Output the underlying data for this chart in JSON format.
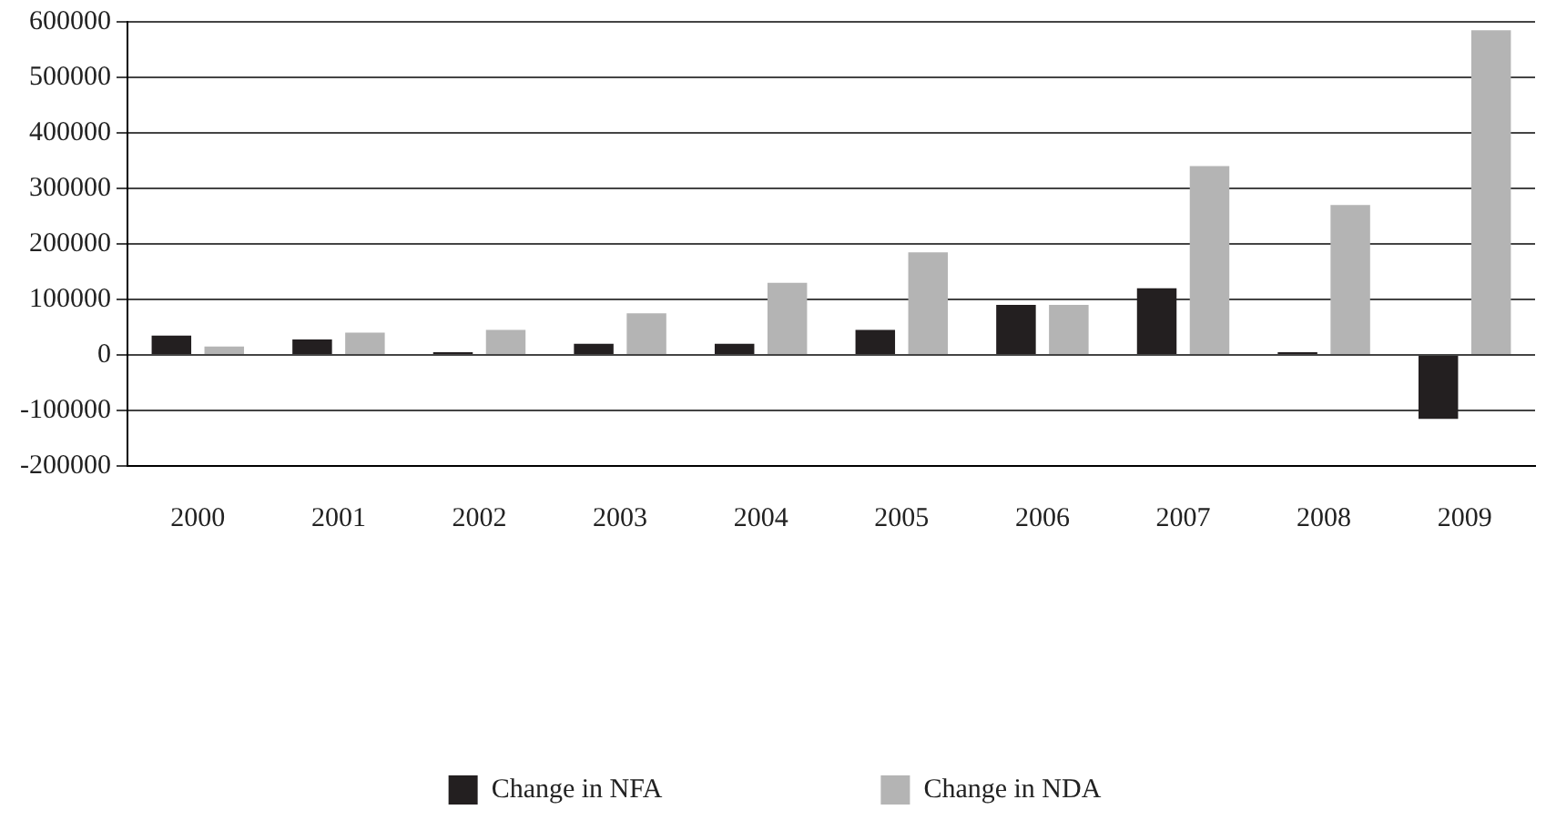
{
  "chart_data": {
    "type": "bar",
    "categories": [
      "2000",
      "2001",
      "2002",
      "2003",
      "2004",
      "2005",
      "2006",
      "2007",
      "2008",
      "2009"
    ],
    "series": [
      {
        "name": "Change in NFA",
        "color": "#231f20",
        "values": [
          35000,
          28000,
          5000,
          20000,
          20000,
          45000,
          90000,
          120000,
          5000,
          -115000
        ]
      },
      {
        "name": "Change in NDA",
        "color": "#b4b4b4",
        "values": [
          15000,
          40000,
          45000,
          75000,
          130000,
          185000,
          90000,
          340000,
          270000,
          585000
        ]
      }
    ],
    "ylim": [
      -200000,
      600000
    ],
    "yticks": [
      -200000,
      -100000,
      0,
      100000,
      200000,
      300000,
      400000,
      500000,
      600000
    ],
    "grid": "y",
    "legend": "bottom"
  }
}
